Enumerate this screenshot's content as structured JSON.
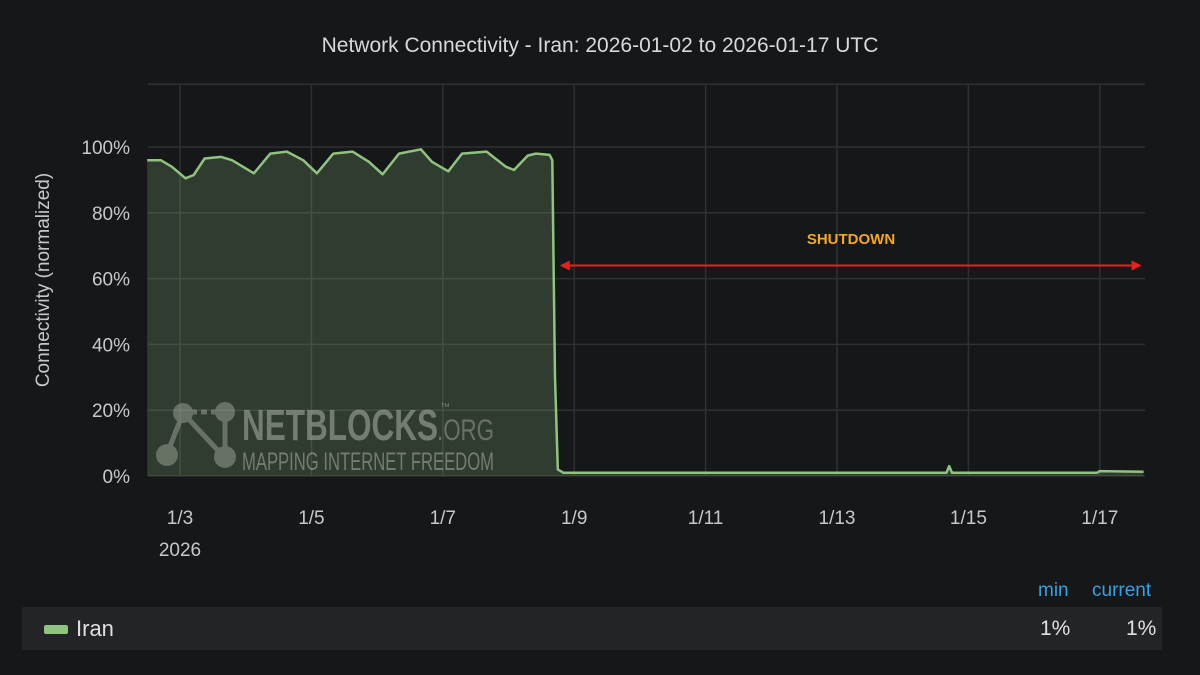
{
  "chart_data": {
    "type": "area",
    "title": "Network Connectivity - Iran: 2026-01-02 to 2026-01-17 UTC",
    "ylabel": "Connectivity (normalized)",
    "xlabel": "",
    "ylim": [
      0,
      120
    ],
    "yticks": [
      "0%",
      "20%",
      "40%",
      "60%",
      "80%",
      "100%"
    ],
    "xticks": [
      "1/3",
      "1/5",
      "1/7",
      "1/9",
      "1/11",
      "1/13",
      "1/15",
      "1/17"
    ],
    "xtick_year": "2026",
    "grid": true,
    "legend_placement": "bottom",
    "series": [
      {
        "name": "Iran",
        "color": "#8fc37e",
        "points": [
          [
            "2026-01-02T12:00",
            96
          ],
          [
            "2026-01-02T17:00",
            96
          ],
          [
            "2026-01-02T21:00",
            94
          ],
          [
            "2026-01-03T02:00",
            90.5
          ],
          [
            "2026-01-03T05:00",
            91.5
          ],
          [
            "2026-01-03T09:00",
            96.5
          ],
          [
            "2026-01-03T15:00",
            97
          ],
          [
            "2026-01-03T19:00",
            96
          ],
          [
            "2026-01-04T03:00",
            92
          ],
          [
            "2026-01-04T09:00",
            98
          ],
          [
            "2026-01-04T15:00",
            98.6
          ],
          [
            "2026-01-04T21:00",
            96
          ],
          [
            "2026-01-05T02:00",
            92
          ],
          [
            "2026-01-05T08:00",
            98
          ],
          [
            "2026-01-05T15:00",
            98.6
          ],
          [
            "2026-01-05T21:00",
            95.5
          ],
          [
            "2026-01-06T02:00",
            91.7
          ],
          [
            "2026-01-06T08:00",
            98
          ],
          [
            "2026-01-06T16:00",
            99.3
          ],
          [
            "2026-01-06T20:00",
            95.5
          ],
          [
            "2026-01-07T02:00",
            92.6
          ],
          [
            "2026-01-07T07:00",
            98
          ],
          [
            "2026-01-07T16:00",
            98.6
          ],
          [
            "2026-01-07T23:00",
            94
          ],
          [
            "2026-01-08T02:00",
            93
          ],
          [
            "2026-01-08T07:00",
            97.4
          ],
          [
            "2026-01-08T10:00",
            98
          ],
          [
            "2026-01-08T15:00",
            97.6
          ],
          [
            "2026-01-08T16:00",
            96
          ],
          [
            "2026-01-08T17:00",
            30
          ],
          [
            "2026-01-08T18:00",
            2
          ],
          [
            "2026-01-08T20:00",
            1
          ],
          [
            "2026-01-10T00:00",
            1
          ],
          [
            "2026-01-12T00:00",
            1
          ],
          [
            "2026-01-14T16:00",
            1
          ],
          [
            "2026-01-14T17:00",
            3
          ],
          [
            "2026-01-14T18:00",
            1
          ],
          [
            "2026-01-16T23:00",
            1
          ],
          [
            "2026-01-17T00:00",
            1.5
          ],
          [
            "2026-01-17T16:00",
            1.3
          ]
        ]
      }
    ],
    "annotation": {
      "label": "SHUTDOWN",
      "color": "#f5a623",
      "arrow_color": "#e8201e",
      "from": "2026-01-08T18:00",
      "to": "2026-01-17T16:00",
      "level": 64
    }
  },
  "watermark": {
    "brand": "NETBLOCKS",
    "tm": "™",
    "domain": ".ORG",
    "tagline": "MAPPING INTERNET FREEDOM"
  },
  "legend": {
    "headers": {
      "min": "min",
      "current": "current"
    },
    "items": [
      {
        "name": "Iran",
        "min": "1%",
        "current": "1%"
      }
    ]
  }
}
